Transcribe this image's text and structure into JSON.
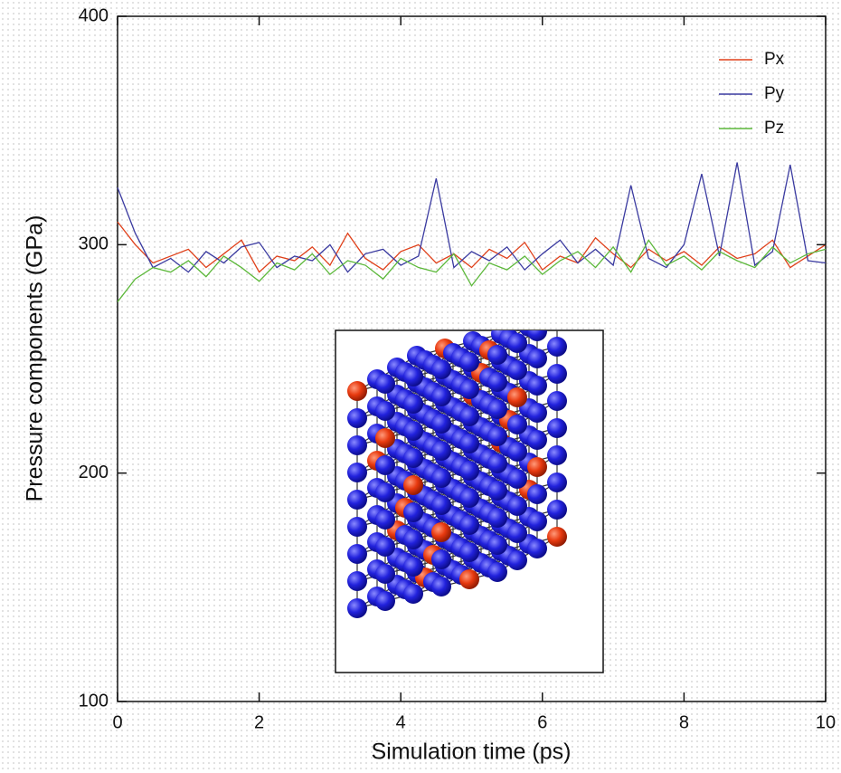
{
  "chart_data": {
    "type": "line",
    "x_label": "Simulation time (ps)",
    "y_label": "Pressure components (GPa)",
    "x": [
      0,
      0.25,
      0.5,
      0.75,
      1,
      1.25,
      1.5,
      1.75,
      2,
      2.25,
      2.5,
      2.75,
      3,
      3.25,
      3.5,
      3.75,
      4,
      4.25,
      4.5,
      4.75,
      5,
      5.25,
      5.5,
      5.75,
      6,
      6.25,
      6.5,
      6.75,
      7,
      7.25,
      7.5,
      7.75,
      8,
      8.25,
      8.5,
      8.75,
      9,
      9.25,
      9.5,
      9.75,
      10
    ],
    "series": [
      {
        "name": "Px",
        "color": "#e0401a",
        "values": [
          310,
          300,
          292,
          295,
          298,
          290,
          296,
          302,
          288,
          295,
          293,
          299,
          291,
          305,
          294,
          289,
          297,
          300,
          292,
          296,
          290,
          298,
          294,
          301,
          289,
          295,
          292,
          303,
          296,
          290,
          298,
          293,
          297,
          291,
          299,
          294,
          296,
          302,
          290,
          295,
          300
        ]
      },
      {
        "name": "Py",
        "color": "#3a3aa0",
        "values": [
          325,
          305,
          290,
          294,
          288,
          297,
          292,
          299,
          301,
          290,
          295,
          293,
          300,
          288,
          296,
          298,
          291,
          295,
          329,
          290,
          297,
          293,
          299,
          289,
          296,
          302,
          292,
          298,
          291,
          326,
          294,
          290,
          300,
          331,
          295,
          336,
          291,
          297,
          335,
          293,
          292
        ]
      },
      {
        "name": "Pz",
        "color": "#5cb83a",
        "values": [
          275,
          285,
          290,
          288,
          293,
          286,
          295,
          290,
          284,
          292,
          289,
          296,
          287,
          293,
          291,
          285,
          294,
          290,
          288,
          296,
          282,
          292,
          289,
          295,
          287,
          293,
          297,
          290,
          299,
          288,
          302,
          291,
          295,
          289,
          297,
          293,
          290,
          299,
          292,
          296,
          298
        ]
      }
    ],
    "xlim": [
      0,
      10
    ],
    "xticks": [
      0,
      2,
      4,
      6,
      8,
      10
    ],
    "ylim": [
      100,
      400
    ],
    "yticks": [
      100,
      200,
      300,
      400
    ],
    "legend": "upper right"
  }
}
